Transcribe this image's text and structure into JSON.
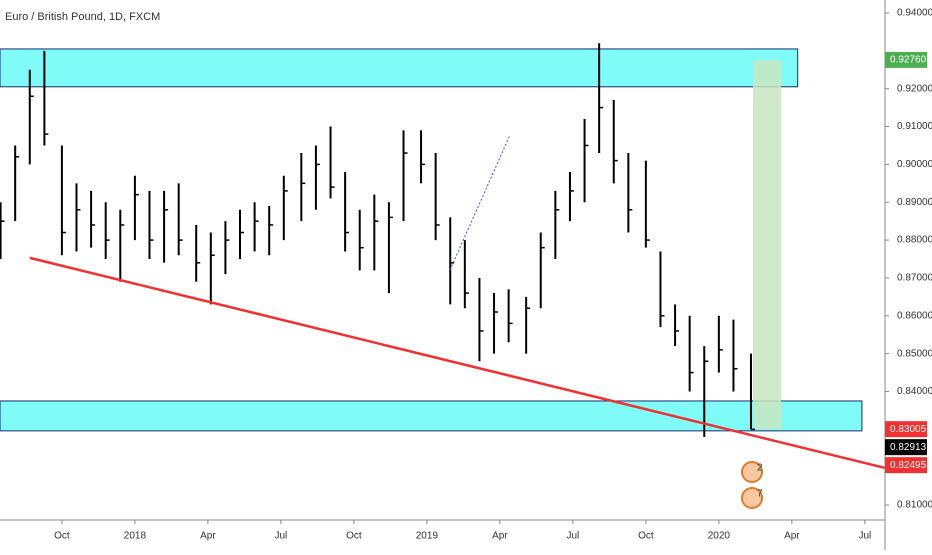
{
  "chart_data": {
    "type": "candlestick",
    "title": "Euro / British Pound, 1D, FXCM",
    "color": "#000000",
    "x": [
      2017.54,
      2017.59,
      2017.64,
      2017.69,
      2017.75,
      2017.8,
      2017.85,
      2017.9,
      2017.95,
      2018.0,
      2018.05,
      2018.1,
      2018.15,
      2018.21,
      2018.26,
      2018.31,
      2018.36,
      2018.41,
      2018.46,
      2018.51,
      2018.57,
      2018.62,
      2018.67,
      2018.72,
      2018.77,
      2018.82,
      2018.87,
      2018.92,
      2018.98,
      2019.03,
      2019.08,
      2019.13,
      2019.18,
      2019.23,
      2019.28,
      2019.34,
      2019.39,
      2019.44,
      2019.49,
      2019.54,
      2019.59,
      2019.64,
      2019.69,
      2019.75,
      2019.8,
      2019.85,
      2019.9,
      2019.95,
      2020.0,
      2020.05,
      2020.11
    ],
    "high": [
      0.89,
      0.905,
      0.925,
      0.93,
      0.905,
      0.895,
      0.893,
      0.89,
      0.888,
      0.897,
      0.893,
      0.893,
      0.895,
      0.884,
      0.882,
      0.885,
      0.888,
      0.89,
      0.889,
      0.897,
      0.903,
      0.905,
      0.91,
      0.898,
      0.888,
      0.892,
      0.89,
      0.909,
      0.909,
      0.903,
      0.886,
      0.88,
      0.87,
      0.866,
      0.867,
      0.865,
      0.882,
      0.893,
      0.898,
      0.912,
      0.932,
      0.917,
      0.903,
      0.901,
      0.877,
      0.863,
      0.86,
      0.852,
      0.86,
      0.859,
      0.85
    ],
    "low": [
      0.875,
      0.885,
      0.9,
      0.905,
      0.876,
      0.877,
      0.878,
      0.875,
      0.869,
      0.88,
      0.875,
      0.874,
      0.876,
      0.869,
      0.863,
      0.871,
      0.875,
      0.877,
      0.876,
      0.88,
      0.885,
      0.888,
      0.891,
      0.877,
      0.872,
      0.872,
      0.866,
      0.885,
      0.895,
      0.88,
      0.863,
      0.862,
      0.848,
      0.85,
      0.853,
      0.85,
      0.862,
      0.875,
      0.885,
      0.89,
      0.903,
      0.895,
      0.882,
      0.878,
      0.857,
      0.852,
      0.84,
      0.828,
      0.845,
      0.84,
      0.83
    ],
    "close": [
      0.885,
      0.902,
      0.918,
      0.908,
      0.882,
      0.888,
      0.884,
      0.88,
      0.884,
      0.892,
      0.88,
      0.888,
      0.88,
      0.874,
      0.876,
      0.88,
      0.882,
      0.885,
      0.884,
      0.893,
      0.895,
      0.9,
      0.894,
      0.882,
      0.878,
      0.885,
      0.886,
      0.903,
      0.9,
      0.884,
      0.874,
      0.866,
      0.856,
      0.861,
      0.858,
      0.862,
      0.878,
      0.888,
      0.893,
      0.905,
      0.915,
      0.901,
      0.888,
      0.88,
      0.86,
      0.856,
      0.845,
      0.848,
      0.851,
      0.846,
      0.83
    ],
    "xlim": [
      2017.538,
      2020.569
    ],
    "xticks": [
      {
        "value": 2017.75,
        "label": "Oct"
      },
      {
        "value": 2018.0,
        "label": "2018"
      },
      {
        "value": 2018.25,
        "label": "Apr"
      },
      {
        "value": 2018.5,
        "label": "Jul"
      },
      {
        "value": 2018.75,
        "label": "Oct"
      },
      {
        "value": 2019.0,
        "label": "2019"
      },
      {
        "value": 2019.25,
        "label": "Apr"
      },
      {
        "value": 2019.5,
        "label": "Jul"
      },
      {
        "value": 2019.75,
        "label": "Oct"
      },
      {
        "value": 2020.0,
        "label": "2020"
      },
      {
        "value": 2020.25,
        "label": "Apr"
      },
      {
        "value": 2020.5,
        "label": "Jul"
      }
    ],
    "ylim": [
      0.80605,
      0.94343
    ],
    "yticks": [
      {
        "value": 0.81,
        "label": "0.81000"
      },
      {
        "value": 0.84,
        "label": "0.84000"
      },
      {
        "value": 0.85,
        "label": "0.85000"
      },
      {
        "value": 0.86,
        "label": "0.86000"
      },
      {
        "value": 0.87,
        "label": "0.87000"
      },
      {
        "value": 0.88,
        "label": "0.88000"
      },
      {
        "value": 0.89,
        "label": "0.89000"
      },
      {
        "value": 0.9,
        "label": "0.90000"
      },
      {
        "value": 0.91,
        "label": "0.91000"
      },
      {
        "value": 0.92,
        "label": "0.92000"
      },
      {
        "value": 0.94,
        "label": "0.94000"
      }
    ],
    "zones": [
      {
        "y": [
          0.9205,
          0.9305
        ],
        "x_end": 2020.27,
        "color": "#7ffcf8"
      },
      {
        "y": [
          0.8296,
          0.8375
        ],
        "x_end": 2020.49,
        "color": "#7ffcf8"
      }
    ],
    "target": {
      "x": [
        2020.117,
        2020.213
      ],
      "y": [
        0.83,
        0.9276
      ],
      "color": "#c8e6c0"
    },
    "trendline": {
      "x": [
        2017.64,
        2020.569
      ],
      "y": [
        0.8753,
        0.8198
      ],
      "color": "#f23030"
    },
    "price_labels": [
      {
        "value": 0.9276,
        "label": "0.92760",
        "color": "#4caf50"
      },
      {
        "value": 0.83005,
        "label": "0.83005",
        "color": "#f23030"
      },
      {
        "value": 0.82913,
        "label": "0.82913",
        "color": "#000000"
      },
      {
        "value": 0.82495,
        "label": "0.82495",
        "color": "#f23030"
      }
    ],
    "event_badges": [
      "2",
      "7"
    ]
  }
}
